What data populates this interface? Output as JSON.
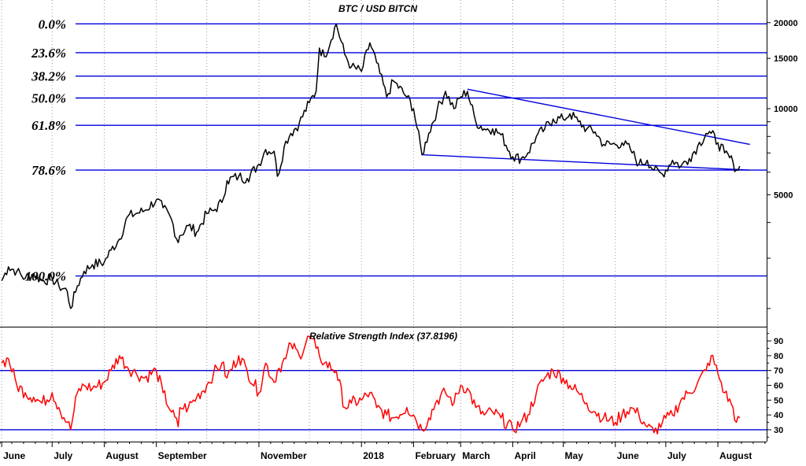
{
  "chart_data": [
    {
      "type": "line",
      "title": "BTC / USD BITCN",
      "y_scale": "log",
      "ylim": [
        1750,
        24000
      ],
      "y_ticks": [
        5000,
        10000,
        15000,
        20000
      ],
      "grid": true,
      "color_series": "#000000",
      "color_fib": "#0000dd",
      "fibonacci_levels": [
        {
          "label": "0.0%",
          "value": 19800
        },
        {
          "label": "23.6%",
          "value": 15700
        },
        {
          "label": "38.2%",
          "value": 13000
        },
        {
          "label": "50.0%",
          "value": 10900
        },
        {
          "label": "61.8%",
          "value": 8750
        },
        {
          "label": "78.6%",
          "value": 6100
        },
        {
          "label": "100.0%",
          "value": 2600
        }
      ],
      "trendlines": [
        {
          "from": [
            "2018-03-05",
            11700
          ],
          "to": [
            "2018-08-20",
            7500
          ]
        },
        {
          "from": [
            "2018-02-06",
            6900
          ],
          "to": [
            "2018-08-20",
            6100
          ]
        }
      ],
      "series": [
        {
          "x": [
            "2017-06-01",
            "2017-06-05",
            "2017-06-10",
            "2017-06-15",
            "2017-06-20",
            "2017-06-25",
            "2017-07-01",
            "2017-07-05",
            "2017-07-10",
            "2017-07-12",
            "2017-07-16",
            "2017-07-20",
            "2017-07-25",
            "2017-08-01",
            "2017-08-05",
            "2017-08-10",
            "2017-08-15",
            "2017-08-20",
            "2017-08-25",
            "2017-09-01",
            "2017-09-05",
            "2017-09-10",
            "2017-09-14",
            "2017-09-15",
            "2017-09-20",
            "2017-09-25",
            "2017-10-01",
            "2017-10-05",
            "2017-10-10",
            "2017-10-13",
            "2017-10-20",
            "2017-10-25",
            "2017-11-01",
            "2017-11-05",
            "2017-11-10",
            "2017-11-12",
            "2017-11-17",
            "2017-11-20",
            "2017-11-25",
            "2017-12-01",
            "2017-12-05",
            "2017-12-07",
            "2017-12-10",
            "2017-12-17",
            "2017-12-22",
            "2017-12-26",
            "2018-01-01",
            "2018-01-06",
            "2018-01-10",
            "2018-01-16",
            "2018-01-20",
            "2018-01-28",
            "2018-02-01",
            "2018-02-06",
            "2018-02-10",
            "2018-02-15",
            "2018-02-20",
            "2018-02-25",
            "2018-03-01",
            "2018-03-05",
            "2018-03-10",
            "2018-03-15",
            "2018-03-20",
            "2018-03-25",
            "2018-04-01",
            "2018-04-06",
            "2018-04-10",
            "2018-04-15",
            "2018-04-20",
            "2018-04-25",
            "2018-05-01",
            "2018-05-05",
            "2018-05-10",
            "2018-05-15",
            "2018-05-20",
            "2018-05-25",
            "2018-06-01",
            "2018-06-05",
            "2018-06-10",
            "2018-06-15",
            "2018-06-20",
            "2018-06-24",
            "2018-06-29",
            "2018-07-05",
            "2018-07-10",
            "2018-07-15",
            "2018-07-20",
            "2018-07-25",
            "2018-07-28",
            "2018-08-01",
            "2018-08-05",
            "2018-08-10",
            "2018-08-12",
            "2018-08-14"
          ],
          "values": [
            2500,
            2800,
            2700,
            2550,
            2650,
            2500,
            2550,
            2400,
            2300,
            2000,
            2400,
            2700,
            2850,
            2900,
            3200,
            3500,
            4200,
            4300,
            4400,
            4800,
            4500,
            4100,
            3400,
            3600,
            3900,
            3700,
            4300,
            4400,
            4700,
            5600,
            5800,
            5700,
            6400,
            7200,
            7100,
            5800,
            7700,
            8200,
            8900,
            10500,
            11500,
            16300,
            15200,
            19800,
            15500,
            14000,
            13500,
            17000,
            14500,
            11000,
            12500,
            11000,
            10000,
            6900,
            8200,
            9900,
            11500,
            10000,
            11000,
            11500,
            9000,
            8500,
            8500,
            8100,
            6800,
            6700,
            7000,
            8000,
            8500,
            9200,
            9200,
            9600,
            9000,
            8500,
            8300,
            7500,
            7500,
            7600,
            7200,
            6400,
            6600,
            6100,
            5900,
            6600,
            6300,
            6700,
            7400,
            8200,
            8200,
            7600,
            7000,
            6500,
            6100,
            6300
          ]
        }
      ]
    },
    {
      "type": "line",
      "title": "Relative Strength Index (37.8196)",
      "ylim": [
        22,
        98
      ],
      "y_ticks": [
        30,
        40,
        50,
        60,
        70,
        80,
        90
      ],
      "reference_lines": [
        30,
        70
      ],
      "color_series": "#ff0000",
      "series": [
        {
          "x": [
            "2017-06-01",
            "2017-06-05",
            "2017-06-10",
            "2017-06-15",
            "2017-06-20",
            "2017-06-25",
            "2017-07-01",
            "2017-07-05",
            "2017-07-10",
            "2017-07-12",
            "2017-07-16",
            "2017-07-20",
            "2017-07-25",
            "2017-08-01",
            "2017-08-05",
            "2017-08-10",
            "2017-08-15",
            "2017-08-20",
            "2017-08-25",
            "2017-09-01",
            "2017-09-05",
            "2017-09-10",
            "2017-09-14",
            "2017-09-15",
            "2017-09-20",
            "2017-09-25",
            "2017-10-01",
            "2017-10-05",
            "2017-10-10",
            "2017-10-13",
            "2017-10-20",
            "2017-10-25",
            "2017-11-01",
            "2017-11-05",
            "2017-11-10",
            "2017-11-12",
            "2017-11-17",
            "2017-11-20",
            "2017-11-25",
            "2017-12-01",
            "2017-12-05",
            "2017-12-07",
            "2017-12-10",
            "2017-12-17",
            "2017-12-22",
            "2017-12-26",
            "2018-01-01",
            "2018-01-06",
            "2018-01-10",
            "2018-01-16",
            "2018-01-20",
            "2018-01-28",
            "2018-02-01",
            "2018-02-06",
            "2018-02-10",
            "2018-02-15",
            "2018-02-20",
            "2018-02-25",
            "2018-03-01",
            "2018-03-05",
            "2018-03-10",
            "2018-03-15",
            "2018-03-20",
            "2018-03-25",
            "2018-04-01",
            "2018-04-06",
            "2018-04-10",
            "2018-04-15",
            "2018-04-20",
            "2018-04-25",
            "2018-05-01",
            "2018-05-05",
            "2018-05-10",
            "2018-05-15",
            "2018-05-20",
            "2018-05-25",
            "2018-06-01",
            "2018-06-05",
            "2018-06-10",
            "2018-06-15",
            "2018-06-20",
            "2018-06-24",
            "2018-06-29",
            "2018-07-05",
            "2018-07-10",
            "2018-07-15",
            "2018-07-20",
            "2018-07-25",
            "2018-07-28",
            "2018-08-01",
            "2018-08-05",
            "2018-08-10",
            "2018-08-12",
            "2018-08-14"
          ],
          "values": [
            75,
            78,
            60,
            55,
            52,
            48,
            55,
            45,
            35,
            30,
            55,
            60,
            58,
            62,
            70,
            80,
            72,
            68,
            65,
            70,
            55,
            42,
            32,
            45,
            45,
            52,
            60,
            68,
            75,
            65,
            80,
            70,
            55,
            75,
            62,
            70,
            78,
            88,
            80,
            93,
            85,
            80,
            75,
            70,
            45,
            48,
            50,
            55,
            45,
            40,
            38,
            45,
            40,
            30,
            38,
            50,
            55,
            48,
            60,
            58,
            45,
            40,
            42,
            38,
            30,
            35,
            40,
            55,
            65,
            70,
            65,
            60,
            55,
            48,
            42,
            38,
            35,
            40,
            45,
            40,
            32,
            28,
            35,
            40,
            50,
            55,
            62,
            70,
            80,
            68,
            55,
            45,
            35,
            38
          ]
        }
      ]
    }
  ],
  "x_axis": {
    "months": [
      {
        "label": "June",
        "date": "2017-06-01"
      },
      {
        "label": "July",
        "date": "2017-07-01"
      },
      {
        "label": "August",
        "date": "2017-08-01"
      },
      {
        "label": "September",
        "date": "2017-09-01"
      },
      {
        "label": "November",
        "date": "2017-11-01"
      },
      {
        "label": "2018",
        "date": "2018-01-01"
      },
      {
        "label": "February",
        "date": "2018-02-01"
      },
      {
        "label": "March",
        "date": "2018-03-01"
      },
      {
        "label": "April",
        "date": "2018-04-01"
      },
      {
        "label": "May",
        "date": "2018-05-01"
      },
      {
        "label": "June",
        "date": "2018-06-01"
      },
      {
        "label": "July",
        "date": "2018-07-01"
      },
      {
        "label": "August",
        "date": "2018-08-01"
      }
    ],
    "unlabeled_gridlines": [
      "2017-10-01",
      "2017-12-01"
    ]
  }
}
